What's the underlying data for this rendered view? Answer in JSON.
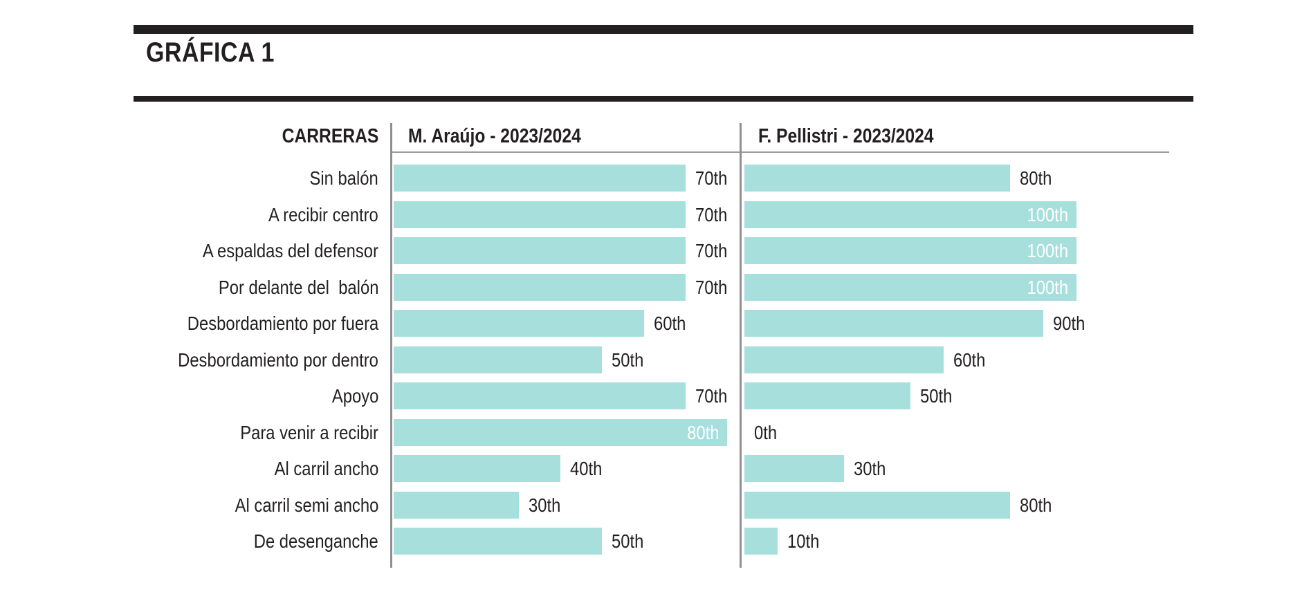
{
  "header": {
    "title": "GRÁFICA 1"
  },
  "chart_data": {
    "type": "bar",
    "orientation": "horizontal",
    "grid": false,
    "legend_position": "none",
    "value_suffix": "th",
    "row_header": "CARRERAS",
    "categories": [
      "Sin balón",
      "A recibir centro",
      "A espaldas del defensor",
      "Por delante del  balón",
      "Desbordamiento por fuera",
      "Desbordamiento por dentro",
      "Apoyo",
      "Para venir a recibir",
      "Al carril ancho",
      "Al carril semi ancho",
      "De desenganche"
    ],
    "series": [
      {
        "name": "M. Araújo - 2023/2024",
        "axis_max": 80,
        "values": [
          70,
          70,
          70,
          70,
          60,
          50,
          70,
          80,
          40,
          30,
          50
        ],
        "labels": [
          "70th",
          "70th",
          "70th",
          "70th",
          "60th",
          "50th",
          "70th",
          "80th",
          "40th",
          "30th",
          "50th"
        ]
      },
      {
        "name": "F. Pellistri - 2023/2024",
        "axis_max": 100,
        "values": [
          80,
          100,
          100,
          100,
          90,
          60,
          50,
          0,
          30,
          80,
          10
        ],
        "labels": [
          "80th",
          "100th",
          "100th",
          "100th",
          "90th",
          "60th",
          "50th",
          "0th",
          "30th",
          "80th",
          "10th"
        ]
      }
    ],
    "colors": {
      "bar": "#a7dfdd",
      "label_inside": "#ffffff",
      "label_outside": "#231f20",
      "rule_black": "#231f20",
      "divider_gray": "#8f8f8f",
      "underline_gray": "#9a9a9a"
    }
  }
}
